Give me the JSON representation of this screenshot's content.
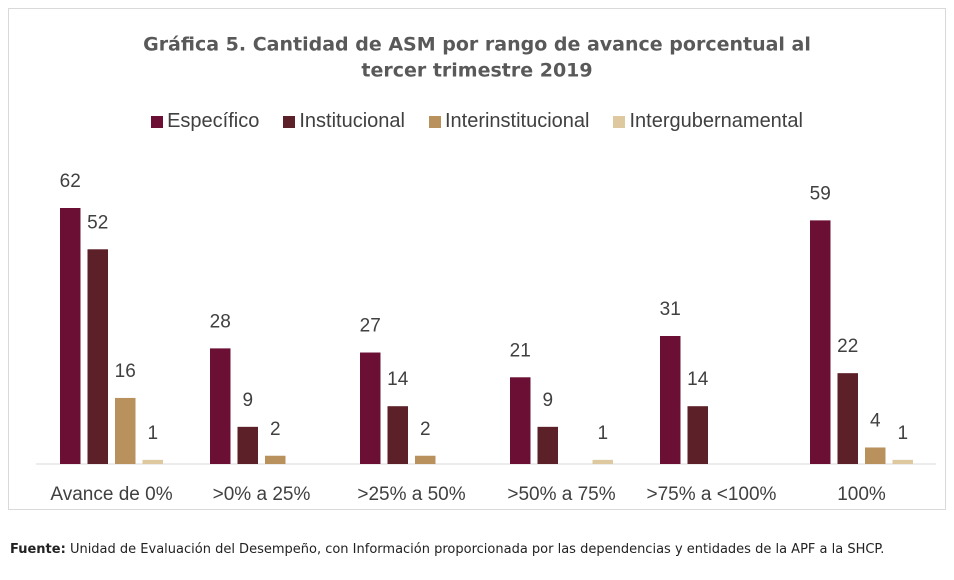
{
  "chart_data": {
    "type": "bar",
    "title": [
      "Gráfica 5. Cantidad de ASM por rango de avance porcentual al",
      "tercer trimestre 2019"
    ],
    "categories": [
      "Avance de 0%",
      ">0% a 25%",
      ">25% a 50%",
      ">50% a 75%",
      ">75% a <100%",
      "100%"
    ],
    "series": [
      {
        "name": "Específico",
        "color": "#6b1034",
        "values": [
          62,
          28,
          27,
          21,
          31,
          59
        ]
      },
      {
        "name": "Institucional",
        "color": "#5c2128",
        "values": [
          52,
          9,
          14,
          9,
          14,
          22
        ]
      },
      {
        "name": "Interinstitucional",
        "color": "#b8915d",
        "values": [
          16,
          2,
          2,
          null,
          null,
          4
        ]
      },
      {
        "name": "Intergubernamental",
        "color": "#ddc89f",
        "values": [
          1,
          null,
          null,
          1,
          null,
          1
        ]
      }
    ],
    "legend": "top",
    "source": {
      "label": "Fuente:",
      "text": "Unidad de Evaluación del Desempeño, con Información proporcionada por las dependencias y entidades de la APF a la SHCP."
    }
  }
}
